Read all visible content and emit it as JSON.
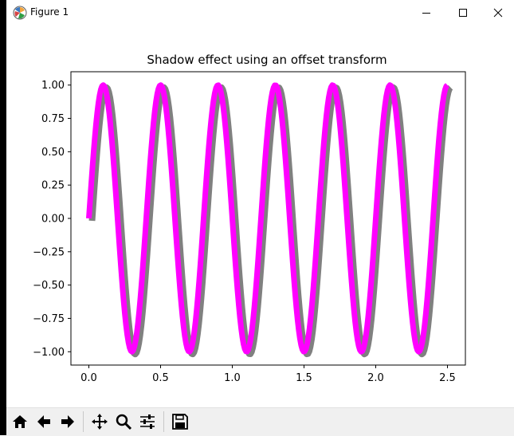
{
  "window": {
    "title": "Figure 1",
    "icons": {
      "app": "matplotlib-logo-icon",
      "minimize": "minimize-icon",
      "maximize": "maximize-icon",
      "close": "close-icon"
    }
  },
  "toolbar": {
    "buttons": [
      {
        "name": "home-button",
        "icon": "home-icon"
      },
      {
        "name": "back-button",
        "icon": "arrow-left-icon"
      },
      {
        "name": "forward-button",
        "icon": "arrow-right-icon"
      },
      {
        "name": "pan-button",
        "icon": "move-icon"
      },
      {
        "name": "zoom-button",
        "icon": "magnifier-icon"
      },
      {
        "name": "configure-subplots-button",
        "icon": "sliders-icon"
      },
      {
        "name": "save-button",
        "icon": "floppy-disk-icon"
      }
    ]
  },
  "chart_data": {
    "type": "line",
    "title": "Shadow effect using an offset transform",
    "xlabel": "",
    "ylabel": "",
    "xlim": [
      -0.125,
      2.625
    ],
    "ylim": [
      -1.1,
      1.1
    ],
    "xticks": [
      0.0,
      0.5,
      1.0,
      1.5,
      2.0,
      2.5
    ],
    "xtick_labels": [
      "0.0",
      "0.5",
      "1.0",
      "1.5",
      "2.0",
      "2.5"
    ],
    "yticks": [
      1.0,
      0.75,
      0.5,
      0.25,
      0.0,
      -0.25,
      -0.5,
      -0.75,
      -1.0
    ],
    "ytick_labels": [
      "1.00",
      "0.75",
      "0.50",
      "0.25",
      "0.00",
      "−0.25",
      "−0.50",
      "−0.75",
      "−1.00"
    ],
    "grid": false,
    "legend": "none",
    "series": [
      {
        "role": "line",
        "function": "sin(2*pi*x)",
        "frequency": 2.5,
        "x_range": [
          0.0,
          2.5
        ],
        "points": 300,
        "color": "#ff00ff"
      },
      {
        "role": "shadow",
        "function": "sin(2*pi*x)",
        "frequency": 2.5,
        "x_range": [
          0.0,
          2.5
        ],
        "points": 300,
        "color": "#808080"
      }
    ]
  },
  "colors": {
    "line": "#ff00ff",
    "shadow": "#808080",
    "toolbar_bg": "#f0f0f0"
  }
}
